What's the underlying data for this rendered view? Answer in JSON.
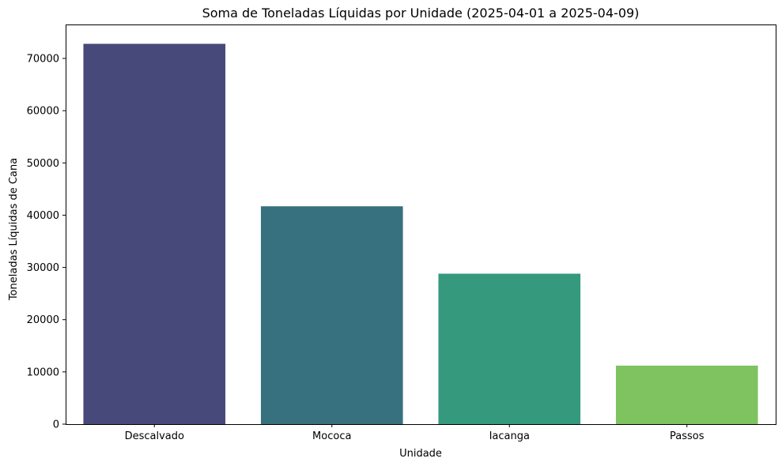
{
  "chart_data": {
    "type": "bar",
    "title": "Soma de Toneladas Líquidas por Unidade (2025-04-01 a 2025-04-09)",
    "xlabel": "Unidade",
    "ylabel": "Toneladas Líquidas de Cana",
    "categories": [
      "Descalvado",
      "Mococa",
      "Iacanga",
      "Passos"
    ],
    "values": [
      72800,
      41700,
      28800,
      11200
    ],
    "colors": [
      "#48497b",
      "#37717f",
      "#35997d",
      "#7fc260"
    ],
    "ylim": [
      0,
      76500
    ],
    "yticks": [
      0,
      10000,
      20000,
      30000,
      40000,
      50000,
      60000,
      70000
    ],
    "ytick_labels": [
      "0",
      "10000",
      "20000",
      "30000",
      "40000",
      "50000",
      "60000",
      "70000"
    ],
    "grid": false,
    "legend": "none"
  }
}
